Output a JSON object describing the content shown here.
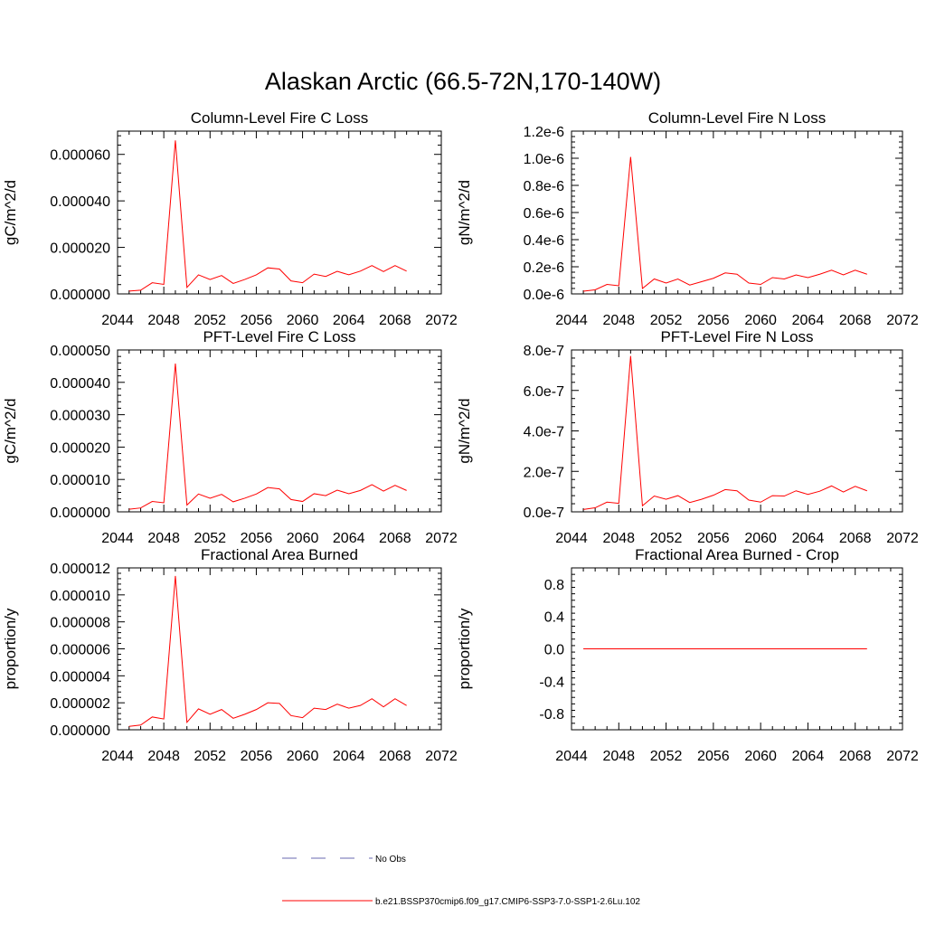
{
  "figure": {
    "title": "Alaskan Arctic (66.5-72N,170-140W)"
  },
  "legend": {
    "entries": [
      {
        "label": "No Obs",
        "color": "#6a6ab0",
        "style": "dashed"
      },
      {
        "label": "b.e21.BSSP370cmip6.f09_g17.CMIP6-SSP3-7.0-SSP1-2.6Lu.102",
        "color": "#ff0000",
        "style": "solid"
      }
    ]
  },
  "chart_data": [
    {
      "type": "line",
      "title": "Column-Level Fire C Loss",
      "xlabel": "",
      "ylabel": "gC/m^2/d",
      "xlim": [
        2044,
        2072
      ],
      "ylim": [
        0,
        7e-05
      ],
      "x_ticks": [
        "2044",
        "2048",
        "2052",
        "2056",
        "2060",
        "2064",
        "2068",
        "2072"
      ],
      "y_ticks": [
        {
          "value": 0,
          "label": "0.000000"
        },
        {
          "value": 2e-05,
          "label": "0.000020"
        },
        {
          "value": 4e-05,
          "label": "0.000040"
        },
        {
          "value": 6e-05,
          "label": "0.000060"
        }
      ],
      "series": [
        {
          "color": "#ff0000",
          "x": [
            2045,
            2046,
            2047,
            2048,
            2049,
            2050,
            2051,
            2052,
            2053,
            2054,
            2055,
            2056,
            2057,
            2058,
            2059,
            2060,
            2061,
            2062,
            2063,
            2064,
            2065,
            2066,
            2067,
            2068,
            2069
          ],
          "values": [
            1.2e-06,
            1.6e-06,
            4.8e-06,
            4.1e-06,
            6.6e-05,
            2.8e-06,
            8.2e-06,
            6.2e-06,
            7.9e-06,
            4.5e-06,
            6.2e-06,
            8.2e-06,
            1.12e-05,
            1.07e-05,
            5.6e-06,
            4.8e-06,
            8.5e-06,
            7.5e-06,
            9.7e-06,
            8.2e-06,
            9.8e-06,
            1.22e-05,
            9.6e-06,
            1.22e-05,
            9.8e-06
          ]
        }
      ]
    },
    {
      "type": "line",
      "title": "Column-Level Fire N Loss",
      "xlabel": "",
      "ylabel": "gN/m^2/d",
      "xlim": [
        2044,
        2072
      ],
      "ylim": [
        0,
        1.2e-06
      ],
      "x_ticks": [
        "2044",
        "2048",
        "2052",
        "2056",
        "2060",
        "2064",
        "2068",
        "2072"
      ],
      "y_ticks": [
        {
          "value": 0,
          "label": "0.0e-6"
        },
        {
          "value": 2e-07,
          "label": "0.2e-6"
        },
        {
          "value": 4e-07,
          "label": "0.4e-6"
        },
        {
          "value": 6e-07,
          "label": "0.6e-6"
        },
        {
          "value": 8e-07,
          "label": "0.8e-6"
        },
        {
          "value": 1e-06,
          "label": "1.0e-6"
        },
        {
          "value": 1.2e-06,
          "label": "1.2e-6"
        }
      ],
      "series": [
        {
          "color": "#ff0000",
          "x": [
            2045,
            2046,
            2047,
            2048,
            2049,
            2050,
            2051,
            2052,
            2053,
            2054,
            2055,
            2056,
            2057,
            2058,
            2059,
            2060,
            2061,
            2062,
            2063,
            2064,
            2065,
            2066,
            2067,
            2068,
            2069
          ],
          "values": [
            2e-08,
            3e-08,
            7e-08,
            6e-08,
            1.01e-06,
            4e-08,
            1.1e-07,
            8e-08,
            1.1e-07,
            6.5e-08,
            9e-08,
            1.15e-07,
            1.55e-07,
            1.45e-07,
            8e-08,
            7e-08,
            1.2e-07,
            1.1e-07,
            1.4e-07,
            1.2e-07,
            1.45e-07,
            1.75e-07,
            1.4e-07,
            1.75e-07,
            1.45e-07
          ]
        }
      ]
    },
    {
      "type": "line",
      "title": "PFT-Level Fire C Loss",
      "xlabel": "",
      "ylabel": "gC/m^2/d",
      "xlim": [
        2044,
        2072
      ],
      "ylim": [
        0,
        5e-05
      ],
      "x_ticks": [
        "2044",
        "2048",
        "2052",
        "2056",
        "2060",
        "2064",
        "2068",
        "2072"
      ],
      "y_ticks": [
        {
          "value": 0,
          "label": "0.000000"
        },
        {
          "value": 1e-05,
          "label": "0.000010"
        },
        {
          "value": 2e-05,
          "label": "0.000020"
        },
        {
          "value": 3e-05,
          "label": "0.000030"
        },
        {
          "value": 4e-05,
          "label": "0.000040"
        },
        {
          "value": 5e-05,
          "label": "0.000050"
        }
      ],
      "series": [
        {
          "color": "#ff0000",
          "x": [
            2045,
            2046,
            2047,
            2048,
            2049,
            2050,
            2051,
            2052,
            2053,
            2054,
            2055,
            2056,
            2057,
            2058,
            2059,
            2060,
            2061,
            2062,
            2063,
            2064,
            2065,
            2066,
            2067,
            2068,
            2069
          ],
          "values": [
            8e-07,
            1.2e-06,
            3.2e-06,
            2.8e-06,
            4.58e-05,
            2.1e-06,
            5.5e-06,
            4.2e-06,
            5.4e-06,
            3.1e-06,
            4.2e-06,
            5.5e-06,
            7.5e-06,
            7.1e-06,
            3.8e-06,
            3.2e-06,
            5.6e-06,
            5e-06,
            6.7e-06,
            5.6e-06,
            6.6e-06,
            8.4e-06,
            6.4e-06,
            8.2e-06,
            6.6e-06
          ]
        }
      ]
    },
    {
      "type": "line",
      "title": "PFT-Level Fire N Loss",
      "xlabel": "",
      "ylabel": "gN/m^2/d",
      "xlim": [
        2044,
        2072
      ],
      "ylim": [
        0,
        8e-07
      ],
      "x_ticks": [
        "2044",
        "2048",
        "2052",
        "2056",
        "2060",
        "2064",
        "2068",
        "2072"
      ],
      "y_ticks": [
        {
          "value": 0,
          "label": "0.0e-7"
        },
        {
          "value": 2e-07,
          "label": "2.0e-7"
        },
        {
          "value": 4e-07,
          "label": "4.0e-7"
        },
        {
          "value": 6e-07,
          "label": "6.0e-7"
        },
        {
          "value": 8e-07,
          "label": "8.0e-7"
        }
      ],
      "series": [
        {
          "color": "#ff0000",
          "x": [
            2045,
            2046,
            2047,
            2048,
            2049,
            2050,
            2051,
            2052,
            2053,
            2054,
            2055,
            2056,
            2057,
            2058,
            2059,
            2060,
            2061,
            2062,
            2063,
            2064,
            2065,
            2066,
            2067,
            2068,
            2069
          ],
          "values": [
            1.2e-08,
            2e-08,
            4.8e-08,
            4.2e-08,
            7.7e-07,
            3e-08,
            7.8e-08,
            6.2e-08,
            8e-08,
            4.6e-08,
            6.2e-08,
            8.2e-08,
            1.1e-07,
            1.04e-07,
            5.8e-08,
            4.8e-08,
            8e-08,
            7.8e-08,
            1.04e-07,
            8.6e-08,
            1.02e-07,
            1.28e-07,
            9.8e-08,
            1.26e-07,
            1.04e-07
          ]
        }
      ]
    },
    {
      "type": "line",
      "title": "Fractional Area Burned",
      "xlabel": "",
      "ylabel": "proportion/y",
      "xlim": [
        2044,
        2072
      ],
      "ylim": [
        0,
        1.2e-05
      ],
      "x_ticks": [
        "2044",
        "2048",
        "2052",
        "2056",
        "2060",
        "2064",
        "2068",
        "2072"
      ],
      "y_ticks": [
        {
          "value": 0,
          "label": "0.000000"
        },
        {
          "value": 2e-06,
          "label": "0.000002"
        },
        {
          "value": 4e-06,
          "label": "0.000004"
        },
        {
          "value": 6e-06,
          "label": "0.000006"
        },
        {
          "value": 8e-06,
          "label": "0.000008"
        },
        {
          "value": 1e-05,
          "label": "0.000010"
        },
        {
          "value": 1.2e-05,
          "label": "0.000012"
        }
      ],
      "series": [
        {
          "color": "#ff0000",
          "x": [
            2045,
            2046,
            2047,
            2048,
            2049,
            2050,
            2051,
            2052,
            2053,
            2054,
            2055,
            2056,
            2057,
            2058,
            2059,
            2060,
            2061,
            2062,
            2063,
            2064,
            2065,
            2066,
            2067,
            2068,
            2069
          ],
          "values": [
            2.5e-07,
            3.5e-07,
            9.5e-07,
            8e-07,
            1.14e-05,
            5.5e-07,
            1.55e-06,
            1.15e-06,
            1.5e-06,
            8.5e-07,
            1.15e-06,
            1.5e-06,
            2e-06,
            1.95e-06,
            1.05e-06,
            9e-07,
            1.6e-06,
            1.5e-06,
            1.9e-06,
            1.6e-06,
            1.8e-06,
            2.3e-06,
            1.7e-06,
            2.3e-06,
            1.8e-06
          ]
        }
      ]
    },
    {
      "type": "line",
      "title": "Fractional Area Burned - Crop",
      "xlabel": "",
      "ylabel": "proportion/y",
      "xlim": [
        2044,
        2072
      ],
      "ylim": [
        -1,
        1
      ],
      "x_ticks": [
        "2044",
        "2048",
        "2052",
        "2056",
        "2060",
        "2064",
        "2068",
        "2072"
      ],
      "y_ticks": [
        {
          "value": -0.8,
          "label": "-0.8"
        },
        {
          "value": -0.4,
          "label": "-0.4"
        },
        {
          "value": 0,
          "label": "0.0"
        },
        {
          "value": 0.4,
          "label": "0.4"
        },
        {
          "value": 0.8,
          "label": "0.8"
        }
      ],
      "series": [
        {
          "color": "#ff0000",
          "x": [
            2045,
            2046,
            2047,
            2048,
            2049,
            2050,
            2051,
            2052,
            2053,
            2054,
            2055,
            2056,
            2057,
            2058,
            2059,
            2060,
            2061,
            2062,
            2063,
            2064,
            2065,
            2066,
            2067,
            2068,
            2069
          ],
          "values": [
            0,
            0,
            0,
            0,
            0,
            0,
            0,
            0,
            0,
            0,
            0,
            0,
            0,
            0,
            0,
            0,
            0,
            0,
            0,
            0,
            0,
            0,
            0,
            0,
            0
          ]
        }
      ]
    }
  ]
}
